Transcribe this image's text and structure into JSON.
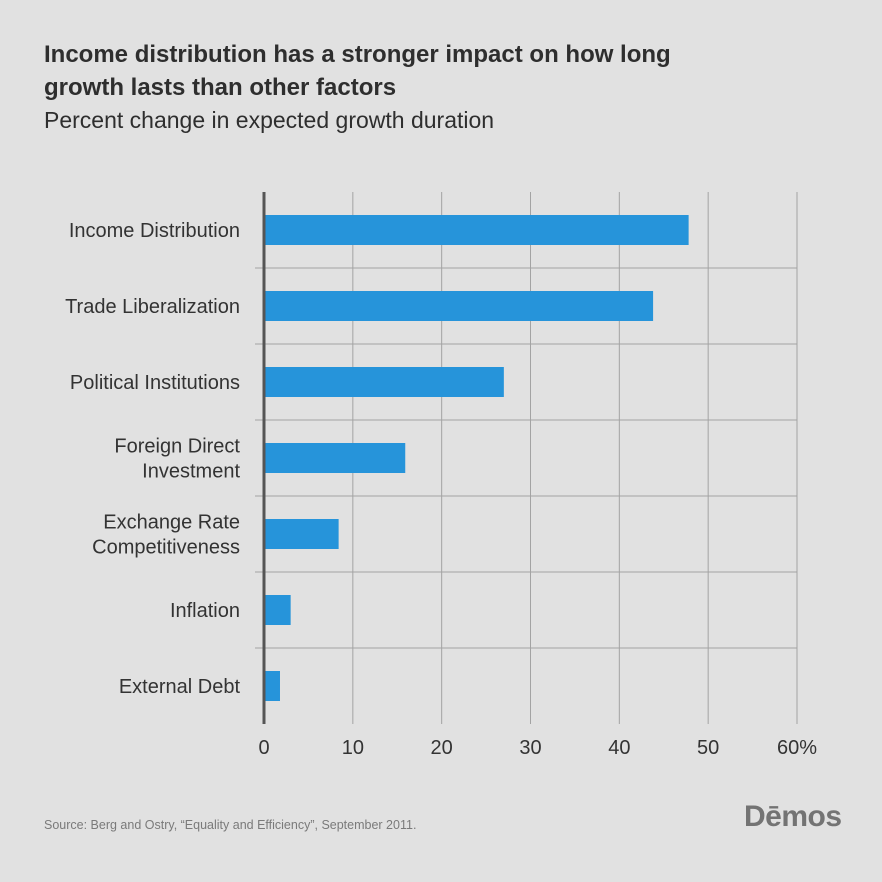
{
  "title": "Income distribution has a stronger impact on how long growth lasts than other factors",
  "subtitle": "Percent change in expected growth duration",
  "source": "Source: Berg and Ostry, “Equality and Efficiency”, September 2011.",
  "logo": "Dēmos",
  "colors": {
    "bar": "#2694da",
    "grid": "#a3a3a3",
    "axis": "#555555",
    "background": "#e1e1e1"
  },
  "chart_data": {
    "type": "bar",
    "orientation": "horizontal",
    "categories": [
      [
        "Income Distribution"
      ],
      [
        "Trade Liberalization"
      ],
      [
        "Political Institutions"
      ],
      [
        "Foreign Direct",
        "Investment"
      ],
      [
        "Exchange Rate",
        "Competitiveness"
      ],
      [
        "Inflation"
      ],
      [
        "External Debt"
      ]
    ],
    "values": [
      47.8,
      43.8,
      27,
      15.9,
      8.4,
      3,
      1.8
    ],
    "xlim": [
      0,
      60
    ],
    "xticks": [
      "0",
      "10",
      "20",
      "30",
      "40",
      "50",
      "60%"
    ],
    "grid": true
  }
}
